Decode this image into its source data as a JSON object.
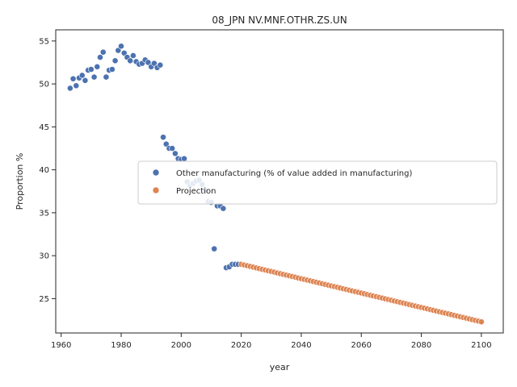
{
  "chart_data": {
    "type": "scatter",
    "title": "08_JPN NV.MNF.OTHR.ZS.UN",
    "xlabel": "year",
    "ylabel": "Proportion %",
    "xlim": [
      1958.2,
      2107.3
    ],
    "ylim": [
      21.0,
      56.3
    ],
    "xticks": [
      1960,
      1980,
      2000,
      2020,
      2040,
      2060,
      2080,
      2100
    ],
    "yticks": [
      25,
      30,
      35,
      40,
      45,
      50,
      55
    ],
    "grid": false,
    "legend_position": "center-right",
    "series": [
      {
        "name": "Other manufacturing (% of value added in manufacturing)",
        "color": "#4c72b0",
        "points": [
          [
            1963,
            49.5
          ],
          [
            1964,
            50.6
          ],
          [
            1965,
            49.8
          ],
          [
            1966,
            50.7
          ],
          [
            1967,
            51.0
          ],
          [
            1968,
            50.4
          ],
          [
            1969,
            51.6
          ],
          [
            1970,
            51.7
          ],
          [
            1971,
            50.8
          ],
          [
            1972,
            52.0
          ],
          [
            1973,
            53.1
          ],
          [
            1974,
            53.7
          ],
          [
            1975,
            50.8
          ],
          [
            1976,
            51.6
          ],
          [
            1977,
            51.7
          ],
          [
            1978,
            52.7
          ],
          [
            1979,
            53.9
          ],
          [
            1980,
            54.4
          ],
          [
            1981,
            53.6
          ],
          [
            1982,
            53.1
          ],
          [
            1983,
            52.7
          ],
          [
            1984,
            53.3
          ],
          [
            1985,
            52.6
          ],
          [
            1986,
            52.3
          ],
          [
            1987,
            52.4
          ],
          [
            1988,
            52.8
          ],
          [
            1989,
            52.5
          ],
          [
            1990,
            52.0
          ],
          [
            1991,
            52.4
          ],
          [
            1992,
            51.9
          ],
          [
            1993,
            52.2
          ],
          [
            1994,
            43.8
          ],
          [
            1995,
            43.0
          ],
          [
            1996,
            42.5
          ],
          [
            1997,
            42.5
          ],
          [
            1998,
            41.9
          ],
          [
            1999,
            41.3
          ],
          [
            2000,
            41.2
          ],
          [
            2001,
            41.3
          ],
          [
            2002,
            38.6
          ],
          [
            2003,
            38.2
          ],
          [
            2004,
            38.4
          ],
          [
            2005,
            38.7
          ],
          [
            2006,
            38.8
          ],
          [
            2007,
            38.3
          ],
          [
            2008,
            37.6
          ],
          [
            2009,
            36.3
          ],
          [
            2010,
            36.2
          ],
          [
            2011,
            30.8
          ],
          [
            2012,
            35.8
          ],
          [
            2013,
            35.8
          ],
          [
            2014,
            35.5
          ],
          [
            2015,
            28.6
          ],
          [
            2016,
            28.7
          ],
          [
            2017,
            29.0
          ],
          [
            2018,
            29.0
          ],
          [
            2019,
            29.0
          ]
        ]
      },
      {
        "name": "Projection",
        "color": "#dd8452",
        "trend": {
          "start": [
            2020,
            29.0
          ],
          "end": [
            2100,
            22.3
          ],
          "step": 1
        }
      }
    ]
  }
}
